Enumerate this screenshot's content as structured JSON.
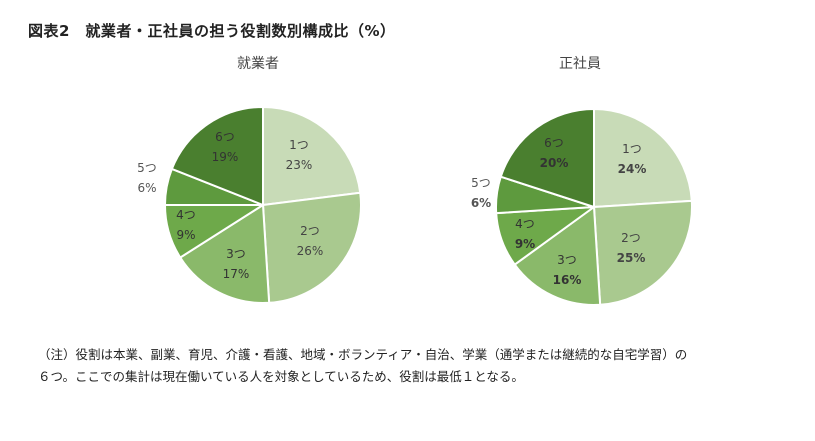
{
  "figure": {
    "title": "図表2　就業者・正社員の担う役割数別構成比（%）"
  },
  "chart_data": [
    {
      "type": "pie",
      "title": "就業者",
      "categories": [
        "1つ",
        "2つ",
        "3つ",
        "4つ",
        "5つ",
        "6つ"
      ],
      "values": [
        23,
        26,
        17,
        9,
        6,
        19
      ],
      "value_labels": [
        "23%",
        "26%",
        "17%",
        "9%",
        "6%",
        "19%"
      ],
      "colors": [
        "#c8dbb7",
        "#a9c98f",
        "#8ab96a",
        "#6ea94a",
        "#5e9a3e",
        "#4a7f2f"
      ],
      "bold_values": false
    },
    {
      "type": "pie",
      "title": "正社員",
      "categories": [
        "1つ",
        "2つ",
        "3つ",
        "4つ",
        "5つ",
        "6つ"
      ],
      "values": [
        24,
        25,
        16,
        9,
        6,
        20
      ],
      "value_labels": [
        "24%",
        "25%",
        "16%",
        "9%",
        "6%",
        "20%"
      ],
      "colors": [
        "#c8dbb7",
        "#a9c98f",
        "#8ab96a",
        "#6ea94a",
        "#5e9a3e",
        "#4a7f2f"
      ],
      "bold_values": true
    }
  ],
  "note": {
    "line1": "（注）役割は本業、副業、育児、介護・看護、地域・ボランティア・自治、学業（通学または継続的な自宅学習）の",
    "line2": "６つ。ここでの集計は現在働いている人を対象としているため、役割は最低１となる。"
  }
}
